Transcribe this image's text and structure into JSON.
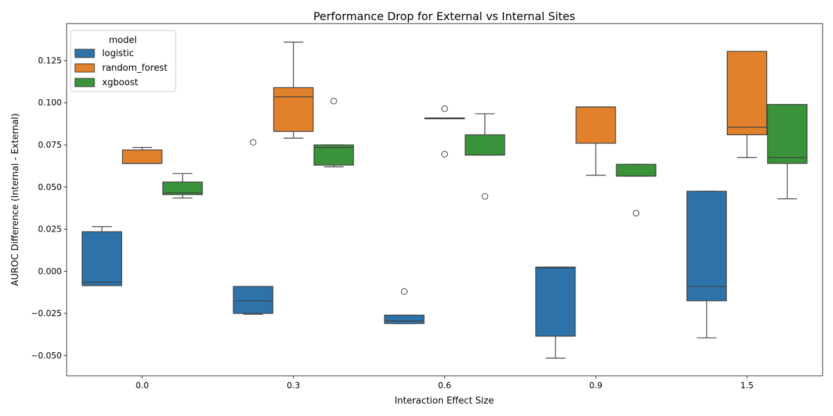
{
  "chart_data": {
    "type": "boxplot",
    "title": "Performance Drop for External vs Internal Sites",
    "xlabel": "Interaction Effect Size",
    "ylabel": "AUROC Difference (Internal - External)",
    "categories": [
      "0.0",
      "0.3",
      "0.6",
      "0.9",
      "1.5"
    ],
    "ylim": [
      -0.062,
      0.147
    ],
    "yticks": [
      -0.05,
      -0.025,
      0.0,
      0.025,
      0.05,
      0.075,
      0.1,
      0.125
    ],
    "ytick_labels": [
      "−0.050",
      "−0.025",
      "0.000",
      "0.025",
      "0.050",
      "0.075",
      "0.100",
      "0.125"
    ],
    "legend": {
      "title": "model",
      "placement": "top-left"
    },
    "series": [
      {
        "name": "logistic",
        "color": "#2e72aa",
        "boxes": [
          {
            "whisker_low": -0.0085,
            "q1": -0.0085,
            "median": -0.0065,
            "q3": 0.0235,
            "whisker_high": 0.0265,
            "outliers": []
          },
          {
            "whisker_low": -0.0255,
            "q1": -0.025,
            "median": -0.0175,
            "q3": -0.009,
            "whisker_high": -0.009,
            "outliers": [
              0.0765
            ]
          },
          {
            "whisker_low": -0.031,
            "q1": -0.031,
            "median": -0.0295,
            "q3": -0.026,
            "whisker_high": -0.026,
            "outliers": [
              -0.012
            ]
          },
          {
            "whisker_low": -0.0515,
            "q1": -0.0385,
            "median": 0.002,
            "q3": 0.0025,
            "whisker_high": 0.0025,
            "outliers": []
          },
          {
            "whisker_low": -0.0395,
            "q1": -0.0175,
            "median": -0.009,
            "q3": 0.0475,
            "whisker_high": 0.0475,
            "outliers": []
          }
        ]
      },
      {
        "name": "random_forest",
        "color": "#e1812c",
        "boxes": [
          {
            "whisker_low": 0.064,
            "q1": 0.064,
            "median": 0.064,
            "q3": 0.072,
            "whisker_high": 0.0735,
            "outliers": []
          },
          {
            "whisker_low": 0.079,
            "q1": 0.083,
            "median": 0.1035,
            "q3": 0.109,
            "whisker_high": 0.136,
            "outliers": []
          },
          {
            "whisker_low": 0.0905,
            "q1": 0.0905,
            "median": 0.091,
            "q3": 0.091,
            "whisker_high": 0.091,
            "outliers": [
              0.0965,
              0.0695
            ]
          },
          {
            "whisker_low": 0.057,
            "q1": 0.076,
            "median": 0.0975,
            "q3": 0.0975,
            "whisker_high": 0.0975,
            "outliers": []
          },
          {
            "whisker_low": 0.0675,
            "q1": 0.081,
            "median": 0.0855,
            "q3": 0.1305,
            "whisker_high": 0.1305,
            "outliers": []
          }
        ]
      },
      {
        "name": "xgboost",
        "color": "#3a923a",
        "boxes": [
          {
            "whisker_low": 0.0435,
            "q1": 0.0455,
            "median": 0.0465,
            "q3": 0.053,
            "whisker_high": 0.058,
            "outliers": []
          },
          {
            "whisker_low": 0.062,
            "q1": 0.063,
            "median": 0.0735,
            "q3": 0.075,
            "whisker_high": 0.075,
            "outliers": [
              0.101
            ]
          },
          {
            "whisker_low": 0.069,
            "q1": 0.069,
            "median": 0.069,
            "q3": 0.081,
            "whisker_high": 0.0935,
            "outliers": [
              0.0445
            ]
          },
          {
            "whisker_low": 0.0565,
            "q1": 0.0565,
            "median": 0.0565,
            "q3": 0.0635,
            "whisker_high": 0.0635,
            "outliers": [
              0.0345
            ]
          },
          {
            "whisker_low": 0.043,
            "q1": 0.064,
            "median": 0.0675,
            "q3": 0.099,
            "whisker_high": 0.099,
            "outliers": []
          }
        ]
      }
    ]
  }
}
